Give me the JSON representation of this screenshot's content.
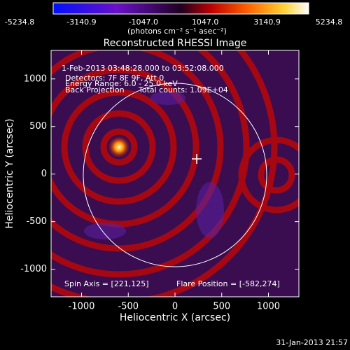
{
  "chart_data": {
    "type": "image",
    "title": "Reconstructed RHESSI Image",
    "colorbar": {
      "label": "(photons cm⁻² s⁻¹ asec⁻²)",
      "lim": [
        -5234.8,
        5234.8
      ],
      "ticks": [
        -5234.8,
        -3140.9,
        {
          "value": -1047,
          "label": "-1047.0"
        },
        {
          "value": 1047,
          "label": "1047.0"
        },
        3140.9,
        5234.8
      ]
    },
    "x_label": "Heliocentric X (arcsec)",
    "y_label": "Heliocentric Y (arcsec)",
    "xlim": [
      -1326,
      1326
    ],
    "ylim": [
      -1290,
      1300
    ],
    "xticks": [
      -1000,
      -500,
      0,
      500,
      1000
    ],
    "yticks": [
      -1000,
      -500,
      0,
      500,
      1000
    ],
    "annotations": {
      "time_range": "1-Feb-2013 03:48:28.000 to 03:52:08.000",
      "detectors": "Detectors: 7F 8F 9F, Att 0",
      "energy": "Energy Range: 6.0 - 25.0 keV",
      "method": "Back Projection",
      "counts": "Total counts: 1.09E+04",
      "spin_axis": "Spin Axis = [221,125]",
      "flare_position": "Flare Position = [-582,274]"
    },
    "timestamp": "31-Jan-2013 21:57"
  }
}
